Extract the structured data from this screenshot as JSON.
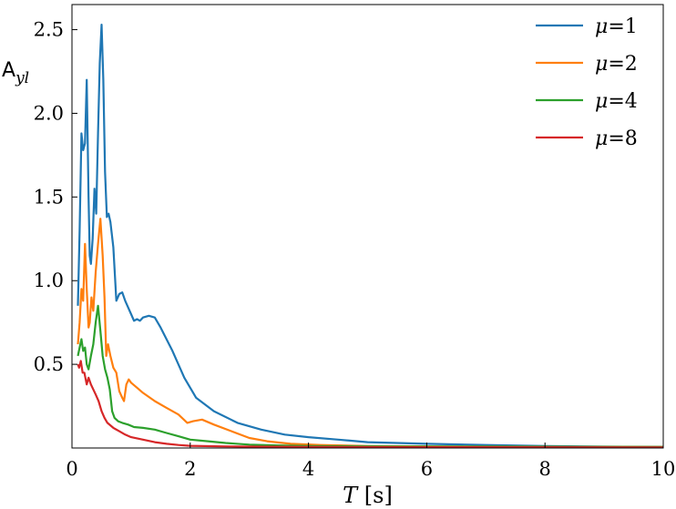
{
  "chart_data": {
    "type": "line",
    "xlabel": {
      "italic": "T",
      "rest": " [s]"
    },
    "ylabel": {
      "main": "A",
      "sub": "yl"
    },
    "xlim": [
      0,
      10
    ],
    "ylim": [
      0,
      2.65
    ],
    "xticks": [
      0,
      2,
      4,
      6,
      8,
      10
    ],
    "xtick_labels": [
      "0",
      "2",
      "4",
      "6",
      "8",
      "10"
    ],
    "yticks": [
      0.5,
      1.0,
      1.5,
      2.0,
      2.5
    ],
    "ytick_labels": [
      "0.5",
      "1.0",
      "1.5",
      "2.0",
      "2.5"
    ],
    "grid": false,
    "legend_position": "top-right",
    "series": [
      {
        "name": "μ=1",
        "label_prefix": "μ",
        "label_value": "1",
        "color": "#1f77b4",
        "points": [
          [
            0.1,
            0.85
          ],
          [
            0.13,
            1.3
          ],
          [
            0.16,
            1.88
          ],
          [
            0.19,
            1.78
          ],
          [
            0.22,
            1.82
          ],
          [
            0.25,
            2.2
          ],
          [
            0.28,
            1.5
          ],
          [
            0.3,
            1.15
          ],
          [
            0.32,
            1.1
          ],
          [
            0.35,
            1.25
          ],
          [
            0.38,
            1.55
          ],
          [
            0.41,
            1.4
          ],
          [
            0.44,
            1.88
          ],
          [
            0.47,
            2.3
          ],
          [
            0.5,
            2.53
          ],
          [
            0.53,
            2.2
          ],
          [
            0.56,
            1.65
          ],
          [
            0.59,
            1.38
          ],
          [
            0.62,
            1.4
          ],
          [
            0.65,
            1.35
          ],
          [
            0.7,
            1.2
          ],
          [
            0.75,
            0.88
          ],
          [
            0.8,
            0.92
          ],
          [
            0.85,
            0.93
          ],
          [
            0.9,
            0.88
          ],
          [
            1.0,
            0.8
          ],
          [
            1.05,
            0.76
          ],
          [
            1.1,
            0.77
          ],
          [
            1.15,
            0.76
          ],
          [
            1.2,
            0.78
          ],
          [
            1.3,
            0.79
          ],
          [
            1.4,
            0.78
          ],
          [
            1.5,
            0.72
          ],
          [
            1.7,
            0.58
          ],
          [
            1.9,
            0.42
          ],
          [
            2.1,
            0.3
          ],
          [
            2.4,
            0.22
          ],
          [
            2.8,
            0.15
          ],
          [
            3.2,
            0.11
          ],
          [
            3.6,
            0.08
          ],
          [
            4.0,
            0.065
          ],
          [
            4.5,
            0.05
          ],
          [
            5.0,
            0.035
          ],
          [
            5.5,
            0.03
          ],
          [
            6.0,
            0.025
          ],
          [
            7.0,
            0.018
          ],
          [
            8.0,
            0.012
          ],
          [
            9.0,
            0.008
          ],
          [
            10.0,
            0.006
          ]
        ]
      },
      {
        "name": "μ=2",
        "label_prefix": "μ",
        "label_value": "2",
        "color": "#ff7f0e",
        "points": [
          [
            0.1,
            0.62
          ],
          [
            0.13,
            0.75
          ],
          [
            0.16,
            0.95
          ],
          [
            0.19,
            0.88
          ],
          [
            0.22,
            1.22
          ],
          [
            0.25,
            0.95
          ],
          [
            0.28,
            0.72
          ],
          [
            0.3,
            0.75
          ],
          [
            0.33,
            0.9
          ],
          [
            0.36,
            0.82
          ],
          [
            0.4,
            1.05
          ],
          [
            0.44,
            1.22
          ],
          [
            0.48,
            1.37
          ],
          [
            0.52,
            1.15
          ],
          [
            0.55,
            0.9
          ],
          [
            0.58,
            0.55
          ],
          [
            0.61,
            0.62
          ],
          [
            0.65,
            0.55
          ],
          [
            0.7,
            0.48
          ],
          [
            0.75,
            0.45
          ],
          [
            0.8,
            0.34
          ],
          [
            0.85,
            0.3
          ],
          [
            0.88,
            0.28
          ],
          [
            0.92,
            0.38
          ],
          [
            0.96,
            0.41
          ],
          [
            1.0,
            0.39
          ],
          [
            1.1,
            0.36
          ],
          [
            1.2,
            0.33
          ],
          [
            1.4,
            0.28
          ],
          [
            1.6,
            0.24
          ],
          [
            1.8,
            0.2
          ],
          [
            1.95,
            0.15
          ],
          [
            2.05,
            0.16
          ],
          [
            2.2,
            0.17
          ],
          [
            2.4,
            0.14
          ],
          [
            2.7,
            0.1
          ],
          [
            3.0,
            0.06
          ],
          [
            3.3,
            0.04
          ],
          [
            3.7,
            0.025
          ],
          [
            4.2,
            0.018
          ],
          [
            5.0,
            0.012
          ],
          [
            6.0,
            0.01
          ],
          [
            8.0,
            0.008
          ],
          [
            10.0,
            0.006
          ]
        ]
      },
      {
        "name": "μ=4",
        "label_prefix": "μ",
        "label_value": "4",
        "color": "#2ca02c",
        "points": [
          [
            0.1,
            0.55
          ],
          [
            0.13,
            0.6
          ],
          [
            0.16,
            0.65
          ],
          [
            0.19,
            0.58
          ],
          [
            0.22,
            0.6
          ],
          [
            0.25,
            0.5
          ],
          [
            0.28,
            0.47
          ],
          [
            0.32,
            0.55
          ],
          [
            0.36,
            0.62
          ],
          [
            0.4,
            0.75
          ],
          [
            0.44,
            0.85
          ],
          [
            0.48,
            0.7
          ],
          [
            0.52,
            0.55
          ],
          [
            0.56,
            0.47
          ],
          [
            0.6,
            0.42
          ],
          [
            0.64,
            0.35
          ],
          [
            0.68,
            0.22
          ],
          [
            0.72,
            0.18
          ],
          [
            0.78,
            0.16
          ],
          [
            0.85,
            0.15
          ],
          [
            0.95,
            0.14
          ],
          [
            1.05,
            0.125
          ],
          [
            1.2,
            0.12
          ],
          [
            1.4,
            0.11
          ],
          [
            1.6,
            0.09
          ],
          [
            1.8,
            0.07
          ],
          [
            2.0,
            0.05
          ],
          [
            2.3,
            0.04
          ],
          [
            2.6,
            0.03
          ],
          [
            3.0,
            0.02
          ],
          [
            3.5,
            0.015
          ],
          [
            4.0,
            0.012
          ],
          [
            5.0,
            0.01
          ],
          [
            7.0,
            0.008
          ],
          [
            10.0,
            0.006
          ]
        ]
      },
      {
        "name": "μ=8",
        "label_prefix": "μ",
        "label_value": "8",
        "color": "#d62728",
        "points": [
          [
            0.1,
            0.5
          ],
          [
            0.12,
            0.48
          ],
          [
            0.15,
            0.52
          ],
          [
            0.18,
            0.45
          ],
          [
            0.21,
            0.45
          ],
          [
            0.25,
            0.38
          ],
          [
            0.28,
            0.42
          ],
          [
            0.32,
            0.38
          ],
          [
            0.36,
            0.35
          ],
          [
            0.4,
            0.32
          ],
          [
            0.45,
            0.28
          ],
          [
            0.5,
            0.22
          ],
          [
            0.55,
            0.18
          ],
          [
            0.6,
            0.15
          ],
          [
            0.7,
            0.12
          ],
          [
            0.8,
            0.1
          ],
          [
            0.9,
            0.08
          ],
          [
            1.0,
            0.065
          ],
          [
            1.2,
            0.05
          ],
          [
            1.4,
            0.035
          ],
          [
            1.6,
            0.025
          ],
          [
            1.8,
            0.018
          ],
          [
            2.0,
            0.013
          ],
          [
            2.5,
            0.01
          ],
          [
            3.0,
            0.008
          ],
          [
            4.0,
            0.006
          ],
          [
            6.0,
            0.005
          ],
          [
            10.0,
            0.004
          ]
        ]
      }
    ]
  }
}
